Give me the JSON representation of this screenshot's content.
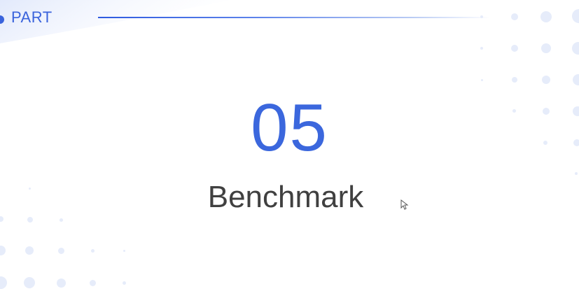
{
  "header": {
    "part_label": "PART"
  },
  "section": {
    "number": "05",
    "title": "Benchmark"
  },
  "colors": {
    "accent": "#3a63dc",
    "title_text": "#404040",
    "dots": "#e6ecfa"
  },
  "icons": {
    "pointer": "mouse-cursor-icon"
  }
}
